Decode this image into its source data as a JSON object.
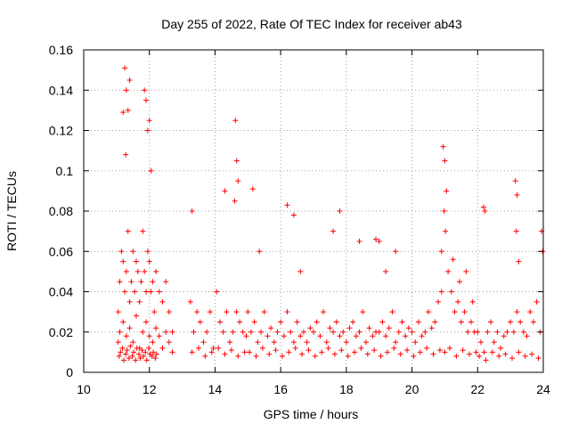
{
  "chart_data": {
    "type": "scatter",
    "title": "Day 255 of 2022, Rate Of TEC Index for receiver ab43",
    "xlabel": "GPS time / hours",
    "ylabel": "ROTI / TECUs",
    "xlim": [
      10,
      24
    ],
    "ylim": [
      0,
      0.16
    ],
    "x_ticks": [
      10,
      12,
      14,
      16,
      18,
      20,
      22,
      24
    ],
    "x_tick_labels": [
      "10",
      "12",
      "14",
      "16",
      "18",
      "20",
      "22",
      "24"
    ],
    "y_ticks": [
      0,
      0.02,
      0.04,
      0.06,
      0.08,
      0.1,
      0.12,
      0.14,
      0.16
    ],
    "y_tick_labels": [
      "0",
      "0.02",
      "0.04",
      "0.06",
      "0.08",
      "0.1",
      "0.12",
      "0.14",
      "0.16"
    ],
    "grid": true,
    "marker": "+",
    "marker_color": "#ff0000",
    "series": [
      {
        "x": [
          11.05,
          11.1,
          11.15,
          11.2,
          11.25,
          11.3,
          11.35,
          11.4,
          11.45,
          11.5,
          11.55,
          11.6,
          11.65,
          11.7,
          11.75,
          11.8,
          11.85,
          11.9,
          11.95,
          12.0,
          12.05,
          12.1,
          12.15,
          12.2,
          12.3,
          12.4,
          12.5,
          12.6,
          12.7,
          11.05,
          11.1,
          11.2,
          11.3,
          11.4,
          11.5,
          11.6,
          11.7,
          11.8,
          11.9,
          12.0,
          12.1,
          12.2,
          12.3,
          12.4,
          12.5,
          12.6,
          12.7,
          11.08,
          11.12,
          11.18,
          11.22,
          11.28,
          11.32,
          11.38,
          11.42,
          11.48,
          11.52,
          11.58,
          11.62,
          11.68,
          11.72,
          11.78,
          11.82,
          11.88,
          11.92,
          11.98,
          12.02,
          12.08,
          12.12,
          12.18,
          12.22,
          11.25,
          11.3,
          11.35,
          11.4,
          11.85,
          11.9,
          11.95,
          12.0,
          12.05,
          11.2,
          11.28,
          13.25,
          13.35,
          13.45,
          13.55,
          13.65,
          13.75,
          13.85,
          13.95,
          14.05,
          14.15,
          14.25,
          14.35,
          14.45,
          14.55,
          14.65,
          14.75,
          14.85,
          14.95,
          13.3,
          13.5,
          13.7,
          13.9,
          14.1,
          14.3,
          14.5,
          14.7,
          14.9,
          14.62,
          14.66,
          14.7,
          14.6,
          14.3,
          13.3,
          15.0,
          15.1,
          15.2,
          15.3,
          15.4,
          15.5,
          15.6,
          15.7,
          15.8,
          15.9,
          16.0,
          16.1,
          16.2,
          16.3,
          16.4,
          16.5,
          16.6,
          16.7,
          16.8,
          16.9,
          15.05,
          15.25,
          15.45,
          15.65,
          15.85,
          16.05,
          16.25,
          16.45,
          16.65,
          16.85,
          15.15,
          15.35,
          16.2,
          16.4,
          16.6,
          17.0,
          17.1,
          17.2,
          17.3,
          17.4,
          17.5,
          17.6,
          17.7,
          17.8,
          17.9,
          18.0,
          18.1,
          18.2,
          18.3,
          18.4,
          18.5,
          18.6,
          18.7,
          18.8,
          18.9,
          17.05,
          17.25,
          17.45,
          17.65,
          17.85,
          18.05,
          18.25,
          18.45,
          18.65,
          18.85,
          17.8,
          17.6,
          18.4,
          18.9,
          19.0,
          19.1,
          19.2,
          19.3,
          19.4,
          19.5,
          19.6,
          19.7,
          19.8,
          19.9,
          20.0,
          20.1,
          20.2,
          20.3,
          20.4,
          20.5,
          20.6,
          20.7,
          20.8,
          20.9,
          19.05,
          19.25,
          19.45,
          19.65,
          19.85,
          20.05,
          20.25,
          20.45,
          20.65,
          20.85,
          19.0,
          19.2,
          19.5,
          20.95,
          21.0,
          21.05,
          20.98,
          21.02,
          20.9,
          21.1,
          21.2,
          21.3,
          21.4,
          21.5,
          21.6,
          21.7,
          21.8,
          21.9,
          21.0,
          21.15,
          21.35,
          21.55,
          21.75,
          21.95,
          21.25,
          21.45,
          21.65,
          21.85,
          22.0,
          22.1,
          22.2,
          22.3,
          22.4,
          22.5,
          22.6,
          22.7,
          22.8,
          22.9,
          23.0,
          23.1,
          23.2,
          23.3,
          23.4,
          23.5,
          23.6,
          23.7,
          23.8,
          23.9,
          22.05,
          22.25,
          22.45,
          22.65,
          22.85,
          23.05,
          23.25,
          23.45,
          23.65,
          23.85,
          22.18,
          22.22,
          23.15,
          23.2,
          23.18,
          23.25,
          23.95,
          23.98
        ],
        "y": [
          0.03,
          0.045,
          0.06,
          0.055,
          0.04,
          0.05,
          0.07,
          0.035,
          0.045,
          0.06,
          0.04,
          0.055,
          0.05,
          0.035,
          0.045,
          0.07,
          0.05,
          0.04,
          0.06,
          0.055,
          0.04,
          0.045,
          0.03,
          0.05,
          0.04,
          0.035,
          0.045,
          0.03,
          0.02,
          0.015,
          0.02,
          0.025,
          0.018,
          0.022,
          0.015,
          0.028,
          0.012,
          0.02,
          0.025,
          0.018,
          0.015,
          0.022,
          0.018,
          0.012,
          0.02,
          0.015,
          0.01,
          0.008,
          0.01,
          0.012,
          0.006,
          0.009,
          0.011,
          0.007,
          0.013,
          0.008,
          0.01,
          0.006,
          0.012,
          0.009,
          0.007,
          0.011,
          0.008,
          0.01,
          0.006,
          0.012,
          0.009,
          0.008,
          0.01,
          0.007,
          0.009,
          0.151,
          0.14,
          0.13,
          0.145,
          0.14,
          0.135,
          0.12,
          0.125,
          0.1,
          0.129,
          0.108,
          0.035,
          0.02,
          0.03,
          0.025,
          0.015,
          0.02,
          0.03,
          0.012,
          0.04,
          0.025,
          0.02,
          0.03,
          0.015,
          0.02,
          0.03,
          0.025,
          0.02,
          0.018,
          0.01,
          0.012,
          0.008,
          0.01,
          0.012,
          0.009,
          0.011,
          0.008,
          0.01,
          0.125,
          0.105,
          0.095,
          0.085,
          0.09,
          0.08,
          0.03,
          0.02,
          0.025,
          0.015,
          0.02,
          0.03,
          0.018,
          0.022,
          0.015,
          0.02,
          0.025,
          0.018,
          0.03,
          0.02,
          0.015,
          0.025,
          0.018,
          0.02,
          0.015,
          0.022,
          0.01,
          0.008,
          0.012,
          0.009,
          0.011,
          0.008,
          0.01,
          0.012,
          0.009,
          0.011,
          0.091,
          0.06,
          0.083,
          0.078,
          0.05,
          0.02,
          0.025,
          0.018,
          0.03,
          0.015,
          0.022,
          0.02,
          0.025,
          0.018,
          0.02,
          0.015,
          0.022,
          0.025,
          0.018,
          0.02,
          0.03,
          0.015,
          0.022,
          0.018,
          0.02,
          0.008,
          0.01,
          0.012,
          0.009,
          0.011,
          0.008,
          0.01,
          0.012,
          0.009,
          0.011,
          0.08,
          0.07,
          0.065,
          0.066,
          0.02,
          0.025,
          0.018,
          0.022,
          0.03,
          0.015,
          0.02,
          0.025,
          0.018,
          0.022,
          0.02,
          0.015,
          0.025,
          0.018,
          0.02,
          0.03,
          0.022,
          0.025,
          0.035,
          0.04,
          0.008,
          0.01,
          0.012,
          0.009,
          0.011,
          0.008,
          0.01,
          0.012,
          0.009,
          0.011,
          0.065,
          0.05,
          0.06,
          0.112,
          0.105,
          0.09,
          0.08,
          0.07,
          0.06,
          0.05,
          0.04,
          0.03,
          0.035,
          0.025,
          0.03,
          0.02,
          0.025,
          0.02,
          0.01,
          0.012,
          0.008,
          0.011,
          0.009,
          0.01,
          0.056,
          0.045,
          0.05,
          0.035,
          0.02,
          0.015,
          0.01,
          0.02,
          0.025,
          0.015,
          0.02,
          0.012,
          0.018,
          0.02,
          0.025,
          0.02,
          0.03,
          0.025,
          0.02,
          0.018,
          0.03,
          0.025,
          0.035,
          0.02,
          0.008,
          0.006,
          0.01,
          0.008,
          0.009,
          0.007,
          0.01,
          0.008,
          0.009,
          0.007,
          0.082,
          0.08,
          0.095,
          0.088,
          0.07,
          0.055,
          0.07,
          0.06
        ]
      }
    ]
  }
}
